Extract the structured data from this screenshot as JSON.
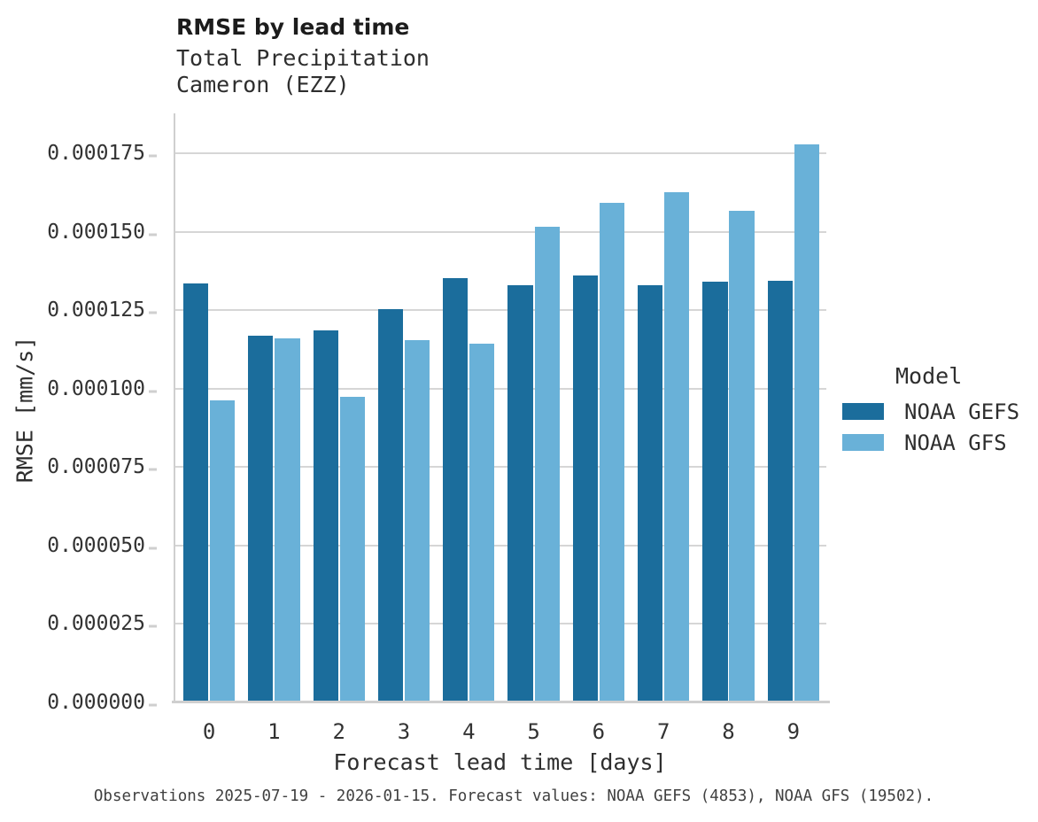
{
  "header": {
    "title": "RMSE by lead time",
    "subtitle_line1": "Total Precipitation",
    "subtitle_line2": "Cameron (EZZ)"
  },
  "chart_data": {
    "type": "bar",
    "title": "RMSE by lead time",
    "subtitle_lines": [
      "Total Precipitation",
      "Cameron (EZZ)"
    ],
    "categories": [
      "0",
      "1",
      "2",
      "3",
      "4",
      "5",
      "6",
      "7",
      "8",
      "9"
    ],
    "series": [
      {
        "name": "NOAA GEFS",
        "color": "#1b6d9c",
        "values": [
          0.0001335,
          0.0001168,
          0.0001186,
          0.0001253,
          0.0001352,
          0.000133,
          0.000136,
          0.0001329,
          0.000134,
          0.0001343
        ]
      },
      {
        "name": "NOAA GFS",
        "color": "#69b1d8",
        "values": [
          9.63e-05,
          0.0001161,
          9.75e-05,
          0.0001154,
          0.0001144,
          0.0001517,
          0.0001592,
          0.0001626,
          0.0001566,
          0.0001779
        ]
      }
    ],
    "xlabel": "Forecast lead time [days]",
    "ylabel": "RMSE [mm/s]",
    "ylim": [
      0,
      0.0001877
    ],
    "yticks": [
      0.0,
      2.5e-05,
      5e-05,
      7.5e-05,
      0.0001,
      0.000125,
      0.00015,
      0.000175
    ],
    "ytick_labels": [
      "0.000000",
      "0.000025",
      "0.000050",
      "0.000075",
      "0.000100",
      "0.000125",
      "0.000150",
      "0.000175"
    ],
    "grid": true,
    "legend_title": "Model",
    "legend_position": "right-center"
  },
  "caption": "Observations 2025-07-19 - 2026-01-15. Forecast values: NOAA GEFS (4853), NOAA GFS (19502)."
}
